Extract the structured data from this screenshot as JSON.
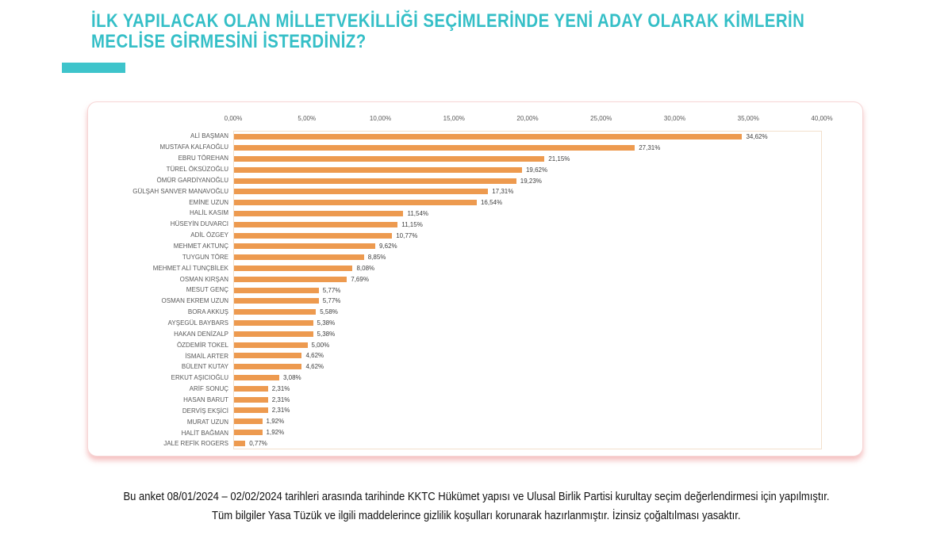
{
  "header": {
    "title_lines": [
      "İLK YAPILACAK OLAN MİLLETVEKİLLİĞİ SEÇİMLERİNDE YENİ ADAY OLARAK KİMLERİN",
      "MECLİSE GİRMESİNİ İSTERDİNİZ?"
    ]
  },
  "colors": {
    "accent_teal": "#3ec4cb",
    "title_teal": "#35bfc7",
    "bar_orange": "#ed9a4f",
    "card_border_pink": "#f6d5d5",
    "plot_border_tan": "#f2e0cc"
  },
  "chart_data": {
    "type": "bar",
    "orientation": "horizontal",
    "title": "",
    "xlabel": "",
    "ylabel": "",
    "axis_position": "top",
    "grid": false,
    "legend": false,
    "xlim": [
      0,
      40
    ],
    "x_ticks": [
      "0,00%",
      "5,00%",
      "10,00%",
      "15,00%",
      "20,00%",
      "25,00%",
      "30,00%",
      "35,00%",
      "40,00%"
    ],
    "bar_color": "#ed9a4f",
    "categories": [
      "ALİ BAŞMAN",
      "MUSTAFA KALFAOĞLU",
      "EBRU TÖREHAN",
      "TÜREL ÖKSÜZOĞLU",
      "ÖMÜR GARDİYANOĞLU",
      "GÜLŞAH SANVER MANAVOĞLU",
      "EMİNE UZUN",
      "HALİL KASIM",
      "HÜSEYİN DUVARCI",
      "ADİL ÖZGEY",
      "MEHMET AKTUNÇ",
      "TUYGUN TÖRE",
      "MEHMET ALİ TUNÇBİLEK",
      "OSMAN KIRŞAN",
      "MESUT GENÇ",
      "OSMAN EKREM UZUN",
      "BORA AKKUŞ",
      "AYŞEGÜL BAYBARS",
      "HAKAN DENİZALP",
      "ÖZDEMİR TOKEL",
      "İSMAİL ARTER",
      "BÜLENT KUTAY",
      "ERKUT AŞICIOĞLU",
      "ARİF SONUÇ",
      "HASAN BARUT",
      "DERVİŞ EKŞİCİ",
      "MURAT UZUN",
      "HALİT BAĞMAN",
      "JALE REFİK ROGERS"
    ],
    "values": [
      34.62,
      27.31,
      21.15,
      19.62,
      19.23,
      17.31,
      16.54,
      11.54,
      11.15,
      10.77,
      9.62,
      8.85,
      8.08,
      7.69,
      5.77,
      5.77,
      5.58,
      5.38,
      5.38,
      5.0,
      4.62,
      4.62,
      3.08,
      2.31,
      2.31,
      2.31,
      1.92,
      1.92,
      0.77
    ],
    "value_labels": [
      "34,62%",
      "27,31%",
      "21,15%",
      "19,62%",
      "19,23%",
      "17,31%",
      "16,54%",
      "11,54%",
      "11,15%",
      "10,77%",
      "9,62%",
      "8,85%",
      "8,08%",
      "7,69%",
      "5,77%",
      "5,77%",
      "5,58%",
      "5,38%",
      "5,38%",
      "5,00%",
      "4,62%",
      "4,62%",
      "3,08%",
      "2,31%",
      "2,31%",
      "2,31%",
      "1,92%",
      "1,92%",
      "0,77%"
    ]
  },
  "footer": {
    "lines": [
      "Bu anket 08/01/2024 – 02/02/2024 tarihleri arasında tarihinde KKTC Hükümet yapısı ve Ulusal Birlik Partisi kurultay seçim değerlendirmesi için yapılmıştır.",
      "Tüm bilgiler Yasa Tüzük ve ilgili maddelerince gizlilik koşulları korunarak hazırlanmıştır.  İzinsiz çoğaltılması yasaktır."
    ]
  }
}
